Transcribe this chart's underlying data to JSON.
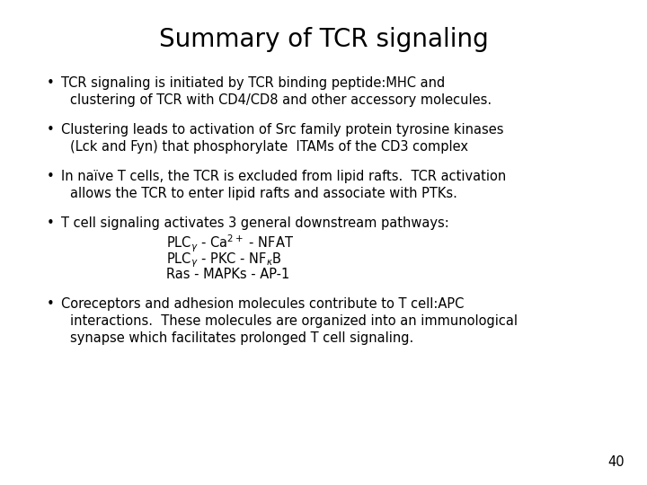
{
  "title": "Summary of TCR signaling",
  "title_fontsize": 20,
  "background_color": "#ffffff",
  "text_color": "#000000",
  "page_number": "40",
  "body_fontsize": 10.5,
  "bullet1_line1": "TCR signaling is initiated by TCR binding peptide:MHC and",
  "bullet1_line2": "clustering of TCR with CD4/CD8 and other accessory molecules.",
  "bullet2_line1": "Clustering leads to activation of Src family protein tyrosine kinases",
  "bullet2_line2": "(Lck and Fyn) that phosphorylate  ITAMs of the CD3 complex",
  "bullet3_line1": "In naïve T cells, the TCR is excluded from lipid rafts.  TCR activation",
  "bullet3_line2": "allows the TCR to enter lipid rafts and associate with PTKs.",
  "bullet4_line1": "T cell signaling activates 3 general downstream pathways:",
  "bullet4_sub1": "PLC$_{\\gamma}$ - Ca$^{2+}$ - NFAT",
  "bullet4_sub2": "PLC$_{\\gamma}$ - PKC - NF$_{\\kappa}$B",
  "bullet4_sub3": "Ras - MAPKs - AP-1",
  "bullet5_line1": "Coreceptors and adhesion molecules contribute to T cell:APC",
  "bullet5_line2": "interactions.  These molecules are organized into an immunological",
  "bullet5_line3": "synapse which facilitates prolonged T cell signaling."
}
